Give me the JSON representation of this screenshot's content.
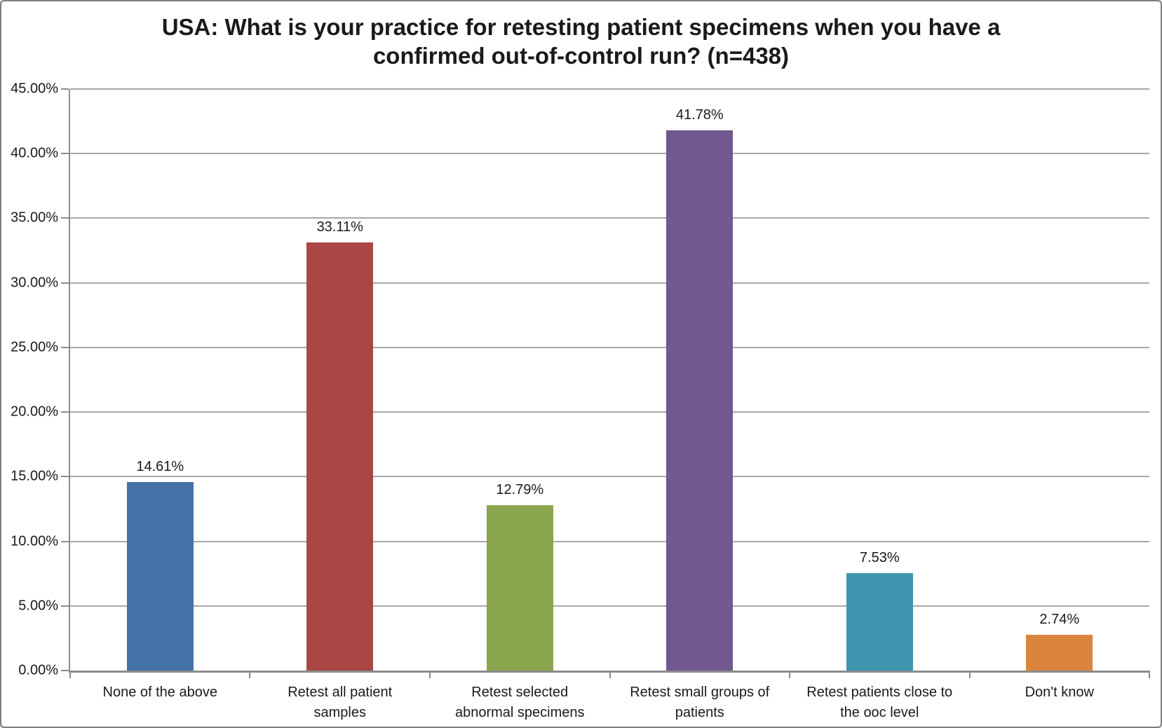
{
  "chart_data": {
    "type": "bar",
    "title": "USA: What is your practice for retesting patient specimens when you have a confirmed out-of-control run? (n=438)",
    "categories": [
      "None of the above",
      "Retest all patient samples",
      "Retest selected abnormal specimens",
      "Retest small groups of patients",
      "Retest patients close to the ooc level",
      "Don't know"
    ],
    "values": [
      14.61,
      33.11,
      12.79,
      41.78,
      7.53,
      2.74
    ],
    "value_labels": [
      "14.61%",
      "33.11%",
      "12.79%",
      "41.78%",
      "7.53%",
      "2.74%"
    ],
    "bar_colors": [
      "#4572A7",
      "#AA4643",
      "#89A54E",
      "#71588F",
      "#3D96AE",
      "#DB843D"
    ],
    "xlabel": "",
    "ylabel": "",
    "ylim": [
      0,
      45
    ],
    "ytick_step": 5,
    "ytick_labels": [
      "0.00%",
      "5.00%",
      "10.00%",
      "15.00%",
      "20.00%",
      "25.00%",
      "30.00%",
      "35.00%",
      "40.00%",
      "45.00%"
    ],
    "grid": "horizontal",
    "legend": "none",
    "colors": {
      "gridline": "#A7A7A7",
      "axis": "#8C8C8C",
      "text": "#1A1A1A",
      "background": "#FFFFFF",
      "frame_border": "#7F7F7F"
    }
  }
}
